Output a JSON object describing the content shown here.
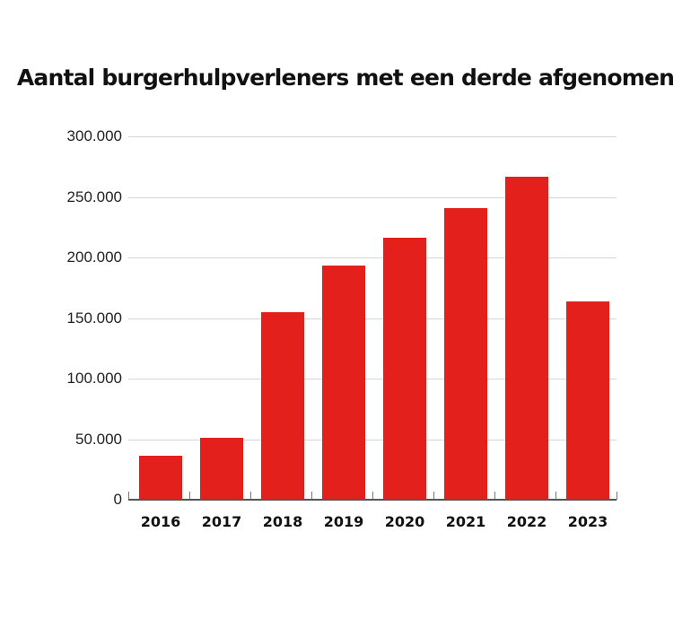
{
  "chart_data": {
    "type": "bar",
    "title": "Aantal burgerhulpverleners met een derde afgenomen",
    "xlabel": "",
    "ylabel": "",
    "categories": [
      "2016",
      "2017",
      "2018",
      "2019",
      "2020",
      "2021",
      "2022",
      "2023"
    ],
    "values": [
      36000,
      51000,
      155000,
      193000,
      216000,
      241000,
      267000,
      164000
    ],
    "ylim": [
      0,
      300000
    ],
    "yticks": [
      "0",
      "50.000",
      "100.000",
      "150.000",
      "200.000",
      "250.000",
      "300.000"
    ],
    "grid": true,
    "legend": null,
    "bar_color": "#e3201b"
  }
}
